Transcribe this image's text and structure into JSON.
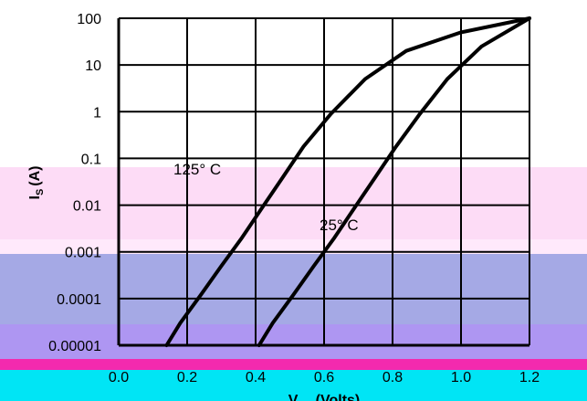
{
  "bands": [
    {
      "name": "pink-band",
      "color": "#FDDCF6"
    },
    {
      "name": "light-pink-band",
      "color": "#FFE9FB"
    },
    {
      "name": "blue-band",
      "color": "#A5A9E5"
    },
    {
      "name": "violet-band",
      "color": "#AE96F2"
    },
    {
      "name": "magenta-band",
      "color": "#F32AAE"
    },
    {
      "name": "cyan-band",
      "color": "#00E5F5"
    }
  ],
  "chart_data": {
    "type": "line",
    "title": "",
    "xlabel": "V",
    "xlabel_suffix": "(Volts)",
    "xlabel_subscript": "SD",
    "ylabel": "I",
    "ylabel_subscript": "S",
    "ylabel_suffix": "(A)",
    "y_scale": "log",
    "xlim": [
      0.0,
      1.2
    ],
    "ylim": [
      1e-05,
      100
    ],
    "grid": true,
    "x_tick_labels": [
      "0.0",
      "0.2",
      "0.4",
      "0.6",
      "0.8",
      "1.0",
      "1.2"
    ],
    "y_tick_labels": [
      "0.00001",
      "0.0001",
      "0.001",
      "0.01",
      "0.1",
      "1",
      "10",
      "100"
    ],
    "line_color": "#000000",
    "series": [
      {
        "name": "125° C",
        "x": [
          0.14,
          0.18,
          0.24,
          0.3,
          0.36,
          0.42,
          0.48,
          0.54,
          0.62,
          0.72,
          0.84,
          1.0,
          1.2
        ],
        "y": [
          1e-05,
          3e-05,
          0.00012,
          0.0005,
          0.002,
          0.009,
          0.04,
          0.18,
          0.9,
          5,
          20,
          50,
          100
        ]
      },
      {
        "name": "25° C",
        "x": [
          0.41,
          0.45,
          0.51,
          0.57,
          0.63,
          0.69,
          0.75,
          0.81,
          0.88,
          0.96,
          1.06,
          1.2
        ],
        "y": [
          1e-05,
          3e-05,
          0.00012,
          0.0005,
          0.002,
          0.009,
          0.04,
          0.18,
          0.9,
          5,
          25,
          100
        ]
      }
    ]
  }
}
